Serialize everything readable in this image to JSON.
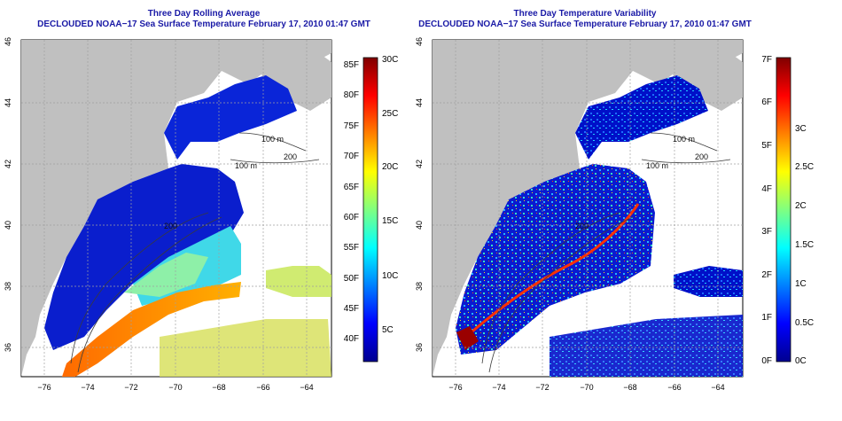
{
  "panels": [
    {
      "id": "avg",
      "title_line1": "Three Day Rolling Average",
      "title_line2": "DECLOUDED NOAA−17 Sea Surface Temperature February 17, 2010 01:47 GMT",
      "x_ticks": [
        "−76",
        "−74",
        "−72",
        "−70",
        "−68",
        "−66",
        "−64"
      ],
      "y_ticks": [
        "36",
        "38",
        "40",
        "42",
        "44",
        "46"
      ],
      "contour_labels": [
        "100 m",
        "100 m",
        "200",
        "200"
      ],
      "colorbar": {
        "left_labels": [
          "85F",
          "80F",
          "75F",
          "70F",
          "65F",
          "60F",
          "55F",
          "50F",
          "45F",
          "40F"
        ],
        "right_labels": [
          "30C",
          "25C",
          "20C",
          "15C",
          "10C",
          "5C"
        ]
      }
    },
    {
      "id": "var",
      "title_line1": "Three Day Temperature Variability",
      "title_line2": "DECLOUDED NOAA−17 Sea Surface Temperature February 17, 2010 01:47 GMT",
      "x_ticks": [
        "−76",
        "−74",
        "−72",
        "−70",
        "−68",
        "−66",
        "−64"
      ],
      "y_ticks": [
        "36",
        "38",
        "40",
        "42",
        "44",
        "46"
      ],
      "contour_labels": [
        "100 m",
        "100 m",
        "200",
        "200"
      ],
      "colorbar": {
        "left_labels": [
          "7F",
          "6F",
          "5F",
          "4F",
          "3F",
          "2F",
          "1F",
          "0F"
        ],
        "right_labels": [
          "3C",
          "2.5C",
          "2C",
          "1.5C",
          "1C",
          "0.5C",
          "0C"
        ]
      }
    }
  ],
  "map_extent": {
    "lon": [
      -77,
      -63
    ],
    "lat": [
      35,
      46
    ]
  },
  "colors": {
    "land": "#c0c0c0",
    "title": "#1a1aa6",
    "grid": "#a0a0a0",
    "no_data": "#ffffff"
  },
  "colormap": "jet"
}
